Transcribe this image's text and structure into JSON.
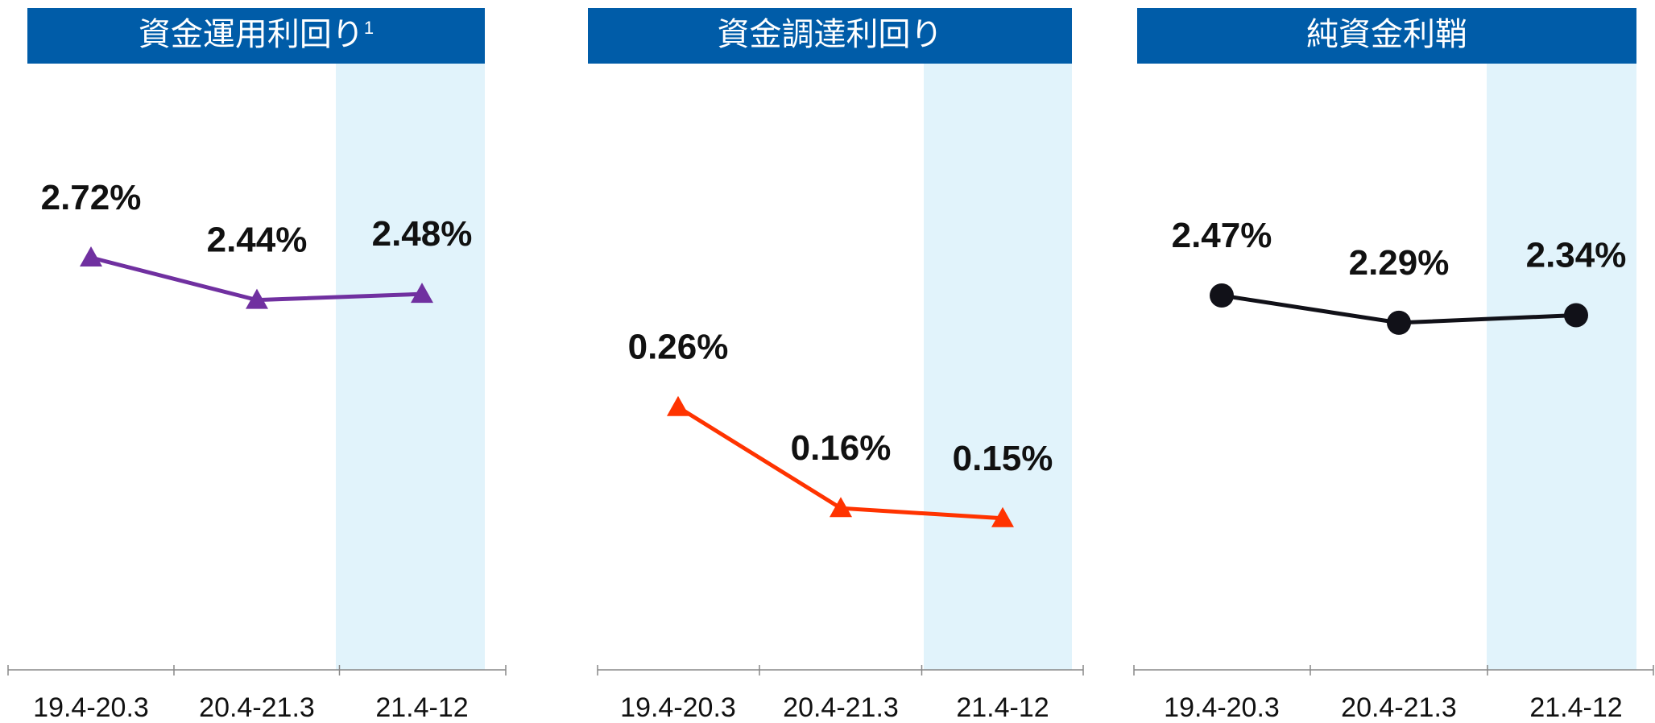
{
  "chart_data": [
    {
      "type": "line",
      "title": "資金運用利回り",
      "title_superscript": "1",
      "categories": [
        "19.4-20.3",
        "20.4-21.3",
        "21.4-12"
      ],
      "series": [
        {
          "color": "#7030a0",
          "marker": "triangle",
          "values": [
            2.72,
            2.44,
            2.48
          ],
          "value_labels": [
            "2.72%",
            "2.44%",
            "2.48%"
          ]
        }
      ],
      "ylim": [
        0,
        4
      ]
    },
    {
      "type": "line",
      "title": "資金調達利回り",
      "categories": [
        "19.4-20.3",
        "20.4-21.3",
        "21.4-12"
      ],
      "series": [
        {
          "color": "#ff3300",
          "marker": "triangle",
          "values": [
            0.26,
            0.16,
            0.15
          ],
          "value_labels": [
            "0.26%",
            "0.16%",
            "0.15%"
          ]
        }
      ],
      "ylim": [
        0,
        0.6
      ]
    },
    {
      "type": "line",
      "title": "純資金利鞘",
      "categories": [
        "19.4-20.3",
        "20.4-21.3",
        "21.4-12"
      ],
      "series": [
        {
          "color": "#111118",
          "marker": "circle",
          "values": [
            2.47,
            2.29,
            2.34
          ],
          "value_labels": [
            "2.47%",
            "2.29%",
            "2.34%"
          ]
        }
      ],
      "ylim": [
        0,
        4
      ]
    }
  ]
}
